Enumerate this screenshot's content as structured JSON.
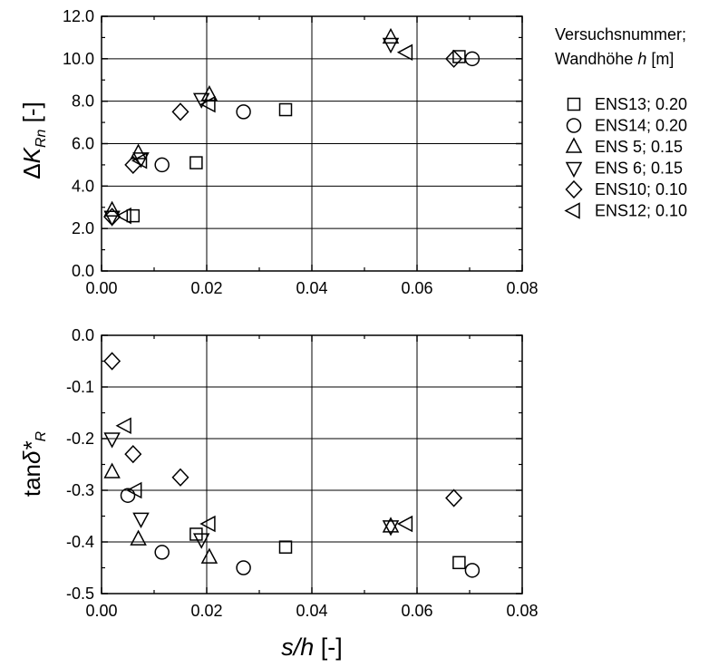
{
  "legend": {
    "title_line1": "Versuchsnummer;",
    "title_line2_prefix": "Wandhöhe ",
    "title_line2_var": "h",
    "title_line2_suffix": " [m]"
  },
  "xlabel": {
    "var": "s/h",
    "unit": " [-]"
  },
  "chart_data": [
    {
      "type": "scatter",
      "ylabel": {
        "prefix": "Δ",
        "var": "K",
        "sub": "Rn",
        "unit": " [-]"
      },
      "xlim": [
        0,
        0.08
      ],
      "ylim": [
        0,
        12
      ],
      "xticks": [
        0.0,
        0.02,
        0.04,
        0.06,
        0.08
      ],
      "xtick_labels": [
        "0.00",
        "0.02",
        "0.04",
        "0.06",
        "0.08"
      ],
      "yticks": [
        0,
        2,
        4,
        6,
        8,
        10,
        12
      ],
      "ytick_labels": [
        "0.0",
        "2.0",
        "4.0",
        "6.0",
        "8.0",
        "10.0",
        "12.0"
      ],
      "grid": true,
      "series": [
        {
          "name": "ENS13; 0.20",
          "marker": "square",
          "points": [
            [
              0.006,
              2.6
            ],
            [
              0.018,
              5.1
            ],
            [
              0.035,
              7.6
            ],
            [
              0.068,
              10.1
            ]
          ]
        },
        {
          "name": "ENS14; 0.20",
          "marker": "circle",
          "points": [
            [
              0.0115,
              5.0
            ],
            [
              0.027,
              7.5
            ],
            [
              0.0705,
              10.0
            ]
          ]
        },
        {
          "name": "ENS 5; 0.15",
          "marker": "triangle-up",
          "points": [
            [
              0.002,
              2.85
            ],
            [
              0.007,
              5.55
            ],
            [
              0.0205,
              8.3
            ],
            [
              0.055,
              11.0
            ]
          ]
        },
        {
          "name": "ENS 6; 0.15",
          "marker": "triangle-down",
          "points": [
            [
              0.002,
              2.55
            ],
            [
              0.0075,
              5.3
            ],
            [
              0.019,
              8.1
            ],
            [
              0.055,
              10.7
            ]
          ]
        },
        {
          "name": "ENS10; 0.10",
          "marker": "diamond",
          "points": [
            [
              0.002,
              2.55
            ],
            [
              0.006,
              5.0
            ],
            [
              0.015,
              7.5
            ],
            [
              0.067,
              10.0
            ]
          ]
        },
        {
          "name": "ENS12; 0.10",
          "marker": "triangle-left",
          "points": [
            [
              0.0045,
              2.6
            ],
            [
              0.0075,
              5.2
            ],
            [
              0.0205,
              7.85
            ],
            [
              0.058,
              10.3
            ]
          ]
        }
      ]
    },
    {
      "type": "scatter",
      "ylabel": {
        "prefix": "tan",
        "var": "δ*",
        "sub": "R",
        "unit": ""
      },
      "xlim": [
        0,
        0.08
      ],
      "ylim": [
        -0.5,
        0.0
      ],
      "xticks": [
        0.0,
        0.02,
        0.04,
        0.06,
        0.08
      ],
      "xtick_labels": [
        "0.00",
        "0.02",
        "0.04",
        "0.06",
        "0.08"
      ],
      "yticks": [
        0.0,
        -0.1,
        -0.2,
        -0.3,
        -0.4,
        -0.5
      ],
      "ytick_labels": [
        "0.0",
        "-0.1",
        "-0.2",
        "-0.3",
        "-0.4",
        "-0.5"
      ],
      "grid": true,
      "series": [
        {
          "name": "ENS13; 0.20",
          "marker": "square",
          "points": [
            [
              0.018,
              -0.385
            ],
            [
              0.035,
              -0.41
            ],
            [
              0.068,
              -0.44
            ]
          ]
        },
        {
          "name": "ENS14; 0.20",
          "marker": "circle",
          "points": [
            [
              0.005,
              -0.31
            ],
            [
              0.0115,
              -0.42
            ],
            [
              0.027,
              -0.45
            ],
            [
              0.0705,
              -0.455
            ]
          ]
        },
        {
          "name": "ENS 5; 0.15",
          "marker": "triangle-up",
          "points": [
            [
              0.002,
              -0.265
            ],
            [
              0.007,
              -0.395
            ],
            [
              0.0205,
              -0.43
            ],
            [
              0.055,
              -0.37
            ]
          ]
        },
        {
          "name": "ENS 6; 0.15",
          "marker": "triangle-down",
          "points": [
            [
              0.002,
              -0.2
            ],
            [
              0.0075,
              -0.355
            ],
            [
              0.019,
              -0.395
            ],
            [
              0.055,
              -0.37
            ]
          ]
        },
        {
          "name": "ENS10; 0.10",
          "marker": "diamond",
          "points": [
            [
              0.002,
              -0.05
            ],
            [
              0.006,
              -0.23
            ],
            [
              0.015,
              -0.275
            ],
            [
              0.067,
              -0.315
            ]
          ]
        },
        {
          "name": "ENS12; 0.10",
          "marker": "triangle-left",
          "points": [
            [
              0.0045,
              -0.175
            ],
            [
              0.0065,
              -0.3
            ],
            [
              0.0205,
              -0.365
            ],
            [
              0.058,
              -0.365
            ]
          ]
        }
      ]
    }
  ]
}
